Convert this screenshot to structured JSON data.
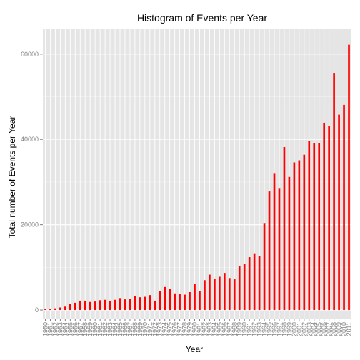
{
  "chart_data": {
    "type": "bar",
    "title": "Histogram of Events per Year",
    "xlabel": "Year",
    "ylabel": "Total number of Events per Year",
    "ylim": [
      -2000,
      66000
    ],
    "yticks": [
      0,
      20000,
      40000,
      60000
    ],
    "ytick_labels": [
      "0",
      "20000",
      "40000",
      "60000"
    ],
    "bar_color": "#ff0000",
    "panel_color": "#e5e5e5",
    "grid_color": "#ffffff",
    "categories": [
      "1950",
      "1951",
      "1952",
      "1953",
      "1954",
      "1955",
      "1956",
      "1957",
      "1958",
      "1959",
      "1960",
      "1961",
      "1962",
      "1963",
      "1964",
      "1965",
      "1966",
      "1967",
      "1968",
      "1969",
      "1970",
      "1971",
      "1972",
      "1973",
      "1974",
      "1975",
      "1976",
      "1977",
      "1978",
      "1979",
      "1980",
      "1981",
      "1982",
      "1983",
      "1984",
      "1985",
      "1986",
      "1987",
      "1988",
      "1989",
      "1990",
      "1991",
      "1992",
      "1993",
      "1994",
      "1995",
      "1996",
      "1997",
      "1998",
      "1999",
      "2000",
      "2001",
      "2002",
      "2003",
      "2004",
      "2005",
      "2006",
      "2007",
      "2008",
      "2009",
      "2010",
      "2011"
    ],
    "values": [
      200,
      300,
      400,
      600,
      800,
      1400,
      1700,
      2200,
      2200,
      1900,
      2000,
      2300,
      2400,
      2200,
      2400,
      2800,
      2500,
      2600,
      3300,
      3000,
      3100,
      3500,
      2200,
      4500,
      5400,
      5000,
      3900,
      3800,
      3600,
      4200,
      6200,
      4500,
      7000,
      8300,
      7300,
      7800,
      8700,
      7500,
      7200,
      10400,
      10900,
      12400,
      13300,
      12600,
      20400,
      27800,
      32100,
      28600,
      38200,
      31200,
      34600,
      35100,
      36400,
      39700,
      39200,
      39200,
      43900,
      43200,
      55600,
      45800,
      48100,
      62200
    ]
  }
}
